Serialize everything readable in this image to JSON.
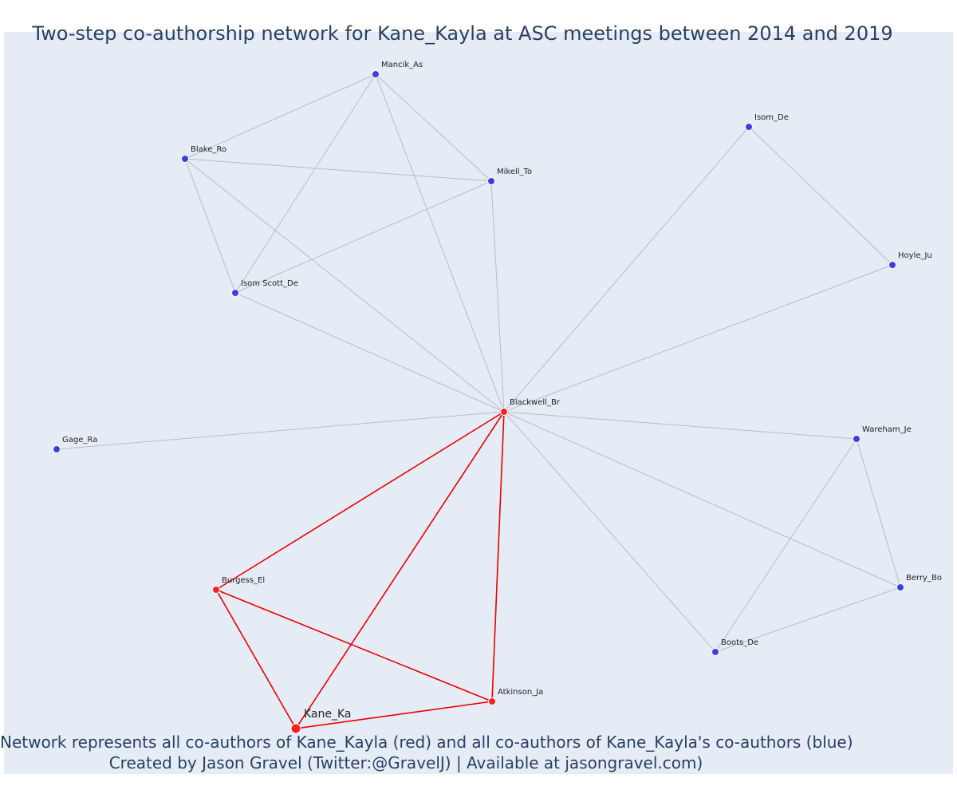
{
  "title": "Two-step co-authorship network for Kane_Kayla at ASC meetings between 2014 and 2019",
  "caption_line1": "Network represents all co-authors of Kane_Kayla (red) and all co-authors of Kane_Kayla's co-authors (blue)",
  "caption_line2": "Created by Jason Gravel (Twitter:@GravelJ) | Available at jasongravel.com)",
  "colors": {
    "background": "#e5ecf6",
    "first_degree": "#ff1f1f",
    "second_degree": "#3a3fe0",
    "edge_gray": "#b8bccb",
    "edge_red": "#ee0000",
    "text": "#2a3f5f"
  },
  "nodes": [
    {
      "id": "Kane_Ka",
      "label": "Kane_Ka",
      "group": "focal"
    },
    {
      "id": "Blackwell_Br",
      "label": "Blackwell_Br",
      "group": "coauthor"
    },
    {
      "id": "Burgess_El",
      "label": "Burgess_El",
      "group": "coauthor"
    },
    {
      "id": "Atkinson_Ja",
      "label": "Atkinson_Ja",
      "group": "coauthor"
    },
    {
      "id": "Mancik_As",
      "label": "Mancik_As",
      "group": "second"
    },
    {
      "id": "Blake_Ro",
      "label": "Blake_Ro",
      "group": "second"
    },
    {
      "id": "Mikell_To",
      "label": "Mikell_To",
      "group": "second"
    },
    {
      "id": "Isom_Scott_De",
      "label": "Isom Scott_De",
      "group": "second"
    },
    {
      "id": "Isom_De",
      "label": "Isom_De",
      "group": "second"
    },
    {
      "id": "Hoyle_Ju",
      "label": "Hoyle_Ju",
      "group": "second"
    },
    {
      "id": "Gage_Ra",
      "label": "Gage_Ra",
      "group": "second"
    },
    {
      "id": "Wareham_Je",
      "label": "Wareham_Je",
      "group": "second"
    },
    {
      "id": "Berry_Bo",
      "label": "Berry_Bo",
      "group": "second"
    },
    {
      "id": "Boots_De",
      "label": "Boots_De",
      "group": "second"
    }
  ],
  "edges": [
    {
      "source": "Mancik_As",
      "target": "Blake_Ro",
      "type": "second"
    },
    {
      "source": "Mancik_As",
      "target": "Mikell_To",
      "type": "second"
    },
    {
      "source": "Mancik_As",
      "target": "Isom_Scott_De",
      "type": "second"
    },
    {
      "source": "Mancik_As",
      "target": "Blackwell_Br",
      "type": "second"
    },
    {
      "source": "Blake_Ro",
      "target": "Mikell_To",
      "type": "second"
    },
    {
      "source": "Blake_Ro",
      "target": "Isom_Scott_De",
      "type": "second"
    },
    {
      "source": "Blake_Ro",
      "target": "Blackwell_Br",
      "type": "second"
    },
    {
      "source": "Mikell_To",
      "target": "Isom_Scott_De",
      "type": "second"
    },
    {
      "source": "Mikell_To",
      "target": "Blackwell_Br",
      "type": "second"
    },
    {
      "source": "Isom_Scott_De",
      "target": "Blackwell_Br",
      "type": "second"
    },
    {
      "source": "Isom_De",
      "target": "Hoyle_Ju",
      "type": "second"
    },
    {
      "source": "Isom_De",
      "target": "Blackwell_Br",
      "type": "second"
    },
    {
      "source": "Hoyle_Ju",
      "target": "Blackwell_Br",
      "type": "second"
    },
    {
      "source": "Gage_Ra",
      "target": "Blackwell_Br",
      "type": "second"
    },
    {
      "source": "Wareham_Je",
      "target": "Blackwell_Br",
      "type": "second"
    },
    {
      "source": "Wareham_Je",
      "target": "Berry_Bo",
      "type": "second"
    },
    {
      "source": "Wareham_Je",
      "target": "Boots_De",
      "type": "second"
    },
    {
      "source": "Berry_Bo",
      "target": "Blackwell_Br",
      "type": "second"
    },
    {
      "source": "Berry_Bo",
      "target": "Boots_De",
      "type": "second"
    },
    {
      "source": "Boots_De",
      "target": "Blackwell_Br",
      "type": "second"
    },
    {
      "source": "Blackwell_Br",
      "target": "Burgess_El",
      "type": "first"
    },
    {
      "source": "Blackwell_Br",
      "target": "Kane_Ka",
      "type": "first"
    },
    {
      "source": "Blackwell_Br",
      "target": "Atkinson_Ja",
      "type": "first"
    },
    {
      "source": "Burgess_El",
      "target": "Kane_Ka",
      "type": "first"
    },
    {
      "source": "Burgess_El",
      "target": "Atkinson_Ja",
      "type": "first"
    },
    {
      "source": "Atkinson_Ja",
      "target": "Kane_Ka",
      "type": "first"
    }
  ]
}
